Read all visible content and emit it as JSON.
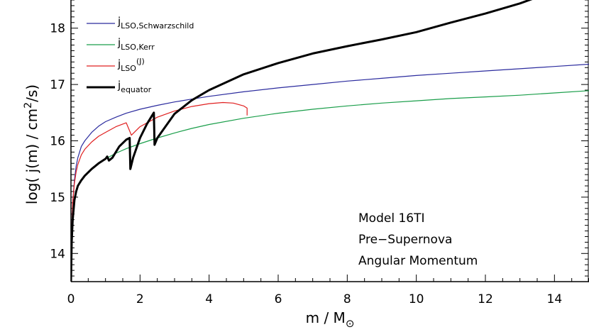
{
  "chart_data": {
    "type": "line",
    "xlabel_main": "m  /  M",
    "xlabel_sub": "⊙",
    "ylabel_parts": [
      "log( j(m)  /  cm",
      "2",
      "/s)"
    ],
    "xlim": [
      0,
      15
    ],
    "ylim": [
      13.5,
      18.5
    ],
    "xticks": [
      0,
      2,
      4,
      6,
      8,
      10,
      12,
      14
    ],
    "yticks": [
      14,
      15,
      16,
      17,
      18
    ],
    "annotation": [
      "Model 16TI",
      "Pre−Supernova",
      "Angular Momentum"
    ],
    "legend_position": "top-left",
    "series": [
      {
        "name_main": "j",
        "name_sub": "LSO,Schwarzschild",
        "name_sup": "",
        "color": "#2b2b9e",
        "x": [
          0.0,
          0.02,
          0.05,
          0.1,
          0.15,
          0.2,
          0.3,
          0.4,
          0.6,
          0.8,
          1.0,
          1.3,
          1.6,
          2.0,
          2.5,
          3.0,
          3.5,
          4.0,
          5.0,
          6.0,
          7.0,
          8.0,
          9.0,
          10.0,
          11.0,
          12.0,
          13.0,
          14.0,
          15.0
        ],
        "y": [
          13.5,
          14.4,
          14.9,
          15.3,
          15.55,
          15.7,
          15.9,
          16.0,
          16.15,
          16.26,
          16.34,
          16.42,
          16.49,
          16.56,
          16.63,
          16.69,
          16.74,
          16.79,
          16.87,
          16.94,
          17.0,
          17.06,
          17.11,
          17.16,
          17.2,
          17.24,
          17.28,
          17.32,
          17.36
        ]
      },
      {
        "name_main": "j",
        "name_sub": "LSO,Kerr",
        "name_sup": "",
        "color": "#1a9e4a",
        "x": [
          0.0,
          0.02,
          0.05,
          0.1,
          0.15,
          0.2,
          0.3,
          0.4,
          0.6,
          0.8,
          1.0,
          1.3,
          1.6,
          2.0,
          2.5,
          3.0,
          3.5,
          4.0,
          5.0,
          6.0,
          7.0,
          8.0,
          9.0,
          10.0,
          11.0,
          12.0,
          13.0,
          14.0,
          15.0
        ],
        "y": [
          13.5,
          14.2,
          14.6,
          14.95,
          15.1,
          15.2,
          15.3,
          15.38,
          15.5,
          15.6,
          15.68,
          15.78,
          15.86,
          15.95,
          16.05,
          16.14,
          16.22,
          16.29,
          16.4,
          16.49,
          16.56,
          16.62,
          16.67,
          16.71,
          16.75,
          16.78,
          16.81,
          16.85,
          16.89
        ]
      },
      {
        "name_main": "j",
        "name_sub": "LSO",
        "name_sup": "(J)",
        "color": "#e02020",
        "x": [
          0.0,
          0.02,
          0.05,
          0.1,
          0.15,
          0.2,
          0.3,
          0.4,
          0.6,
          0.8,
          1.0,
          1.3,
          1.6,
          1.75,
          2.0,
          2.5,
          3.0,
          3.5,
          4.0,
          4.4,
          4.7,
          5.0,
          5.1,
          5.1
        ],
        "y": [
          13.5,
          14.4,
          14.9,
          15.25,
          15.45,
          15.58,
          15.75,
          15.85,
          15.98,
          16.08,
          16.15,
          16.25,
          16.32,
          16.1,
          16.25,
          16.42,
          16.53,
          16.61,
          16.66,
          16.68,
          16.67,
          16.62,
          16.58,
          16.45
        ]
      },
      {
        "name_main": "j",
        "name_sub": "equator",
        "name_sup": "",
        "color": "#000000",
        "width": 3,
        "x": [
          0.0,
          0.02,
          0.05,
          0.1,
          0.15,
          0.2,
          0.3,
          0.4,
          0.6,
          0.8,
          1.0,
          1.05,
          1.1,
          1.2,
          1.4,
          1.6,
          1.7,
          1.72,
          1.8,
          2.0,
          2.2,
          2.4,
          2.42,
          2.5,
          3.0,
          3.5,
          4.0,
          5.0,
          6.0,
          7.0,
          8.0,
          9.0,
          10.0,
          11.0,
          12.0,
          13.0,
          13.5
        ],
        "y": [
          13.5,
          14.2,
          14.6,
          14.95,
          15.1,
          15.2,
          15.3,
          15.38,
          15.5,
          15.6,
          15.68,
          15.72,
          15.65,
          15.7,
          15.9,
          16.02,
          16.05,
          15.5,
          15.7,
          16.05,
          16.3,
          16.5,
          15.93,
          16.05,
          16.48,
          16.72,
          16.9,
          17.18,
          17.38,
          17.55,
          17.68,
          17.8,
          17.93,
          18.1,
          18.26,
          18.44,
          18.55
        ]
      }
    ]
  }
}
